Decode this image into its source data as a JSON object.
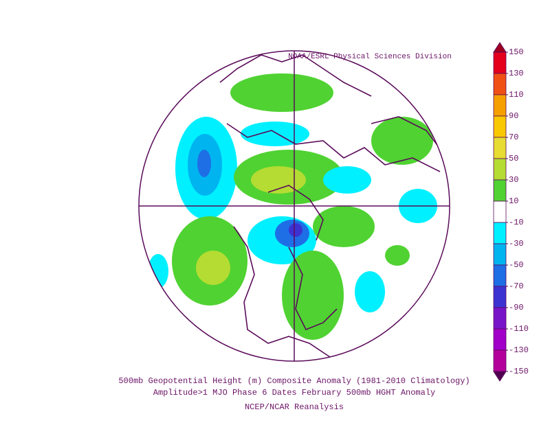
{
  "header": {
    "credit": "NOAA/ESRL Physical Sciences Division"
  },
  "caption": {
    "line1": "500mb Geopotential Height (m) Composite Anomaly (1981-2010 Climatology)",
    "line2": "Amplitude>1 MJO Phase 6 Dates February 500mb HGHT Anomaly",
    "line3": "NCEP/NCAR Reanalysis"
  },
  "colorbar": {
    "ticks": [
      150,
      130,
      110,
      90,
      70,
      50,
      30,
      10,
      -10,
      -30,
      -50,
      -70,
      -90,
      -110,
      -130,
      -150
    ],
    "colors": [
      "#e4001c",
      "#f05014",
      "#f5a000",
      "#fac800",
      "#e6dc32",
      "#b4dc32",
      "#50d232",
      "#ffffff",
      "#00f0ff",
      "#00b4f0",
      "#1e6ee6",
      "#3c32d2",
      "#7814c8",
      "#a000c8",
      "#b4009b"
    ],
    "over_color": "#a0001e",
    "under_color": "#500050"
  }
}
